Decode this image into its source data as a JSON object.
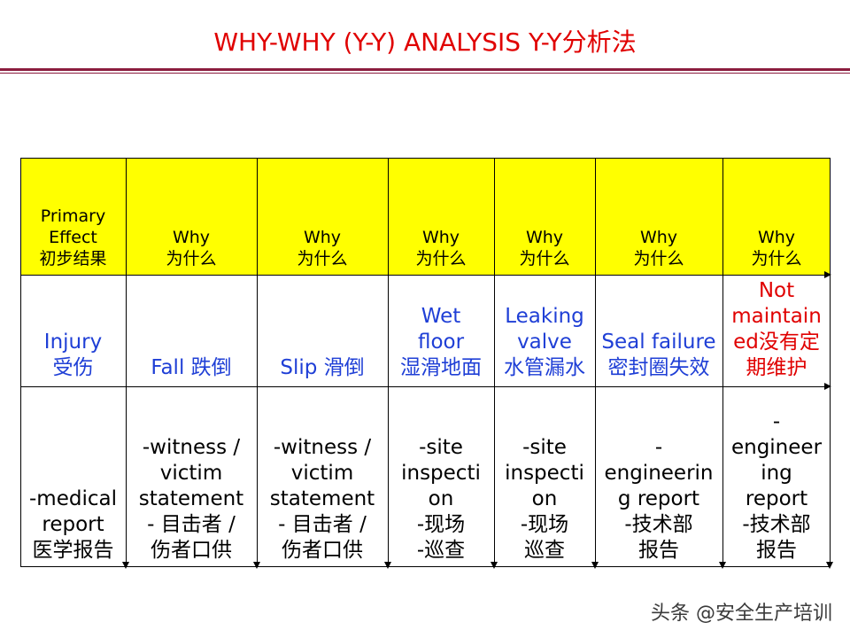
{
  "title": "WHY-WHY (Y-Y) ANALYSIS Y-Y分析法",
  "watermark": "头条 @安全生产培训",
  "columns": [
    {
      "head": [
        "Primary",
        "Effect",
        "初步结果"
      ],
      "effect": [
        "Injury",
        "受伤"
      ],
      "evidence": [
        "-medical",
        "report",
        "医学报告"
      ]
    },
    {
      "head": [
        "Why",
        "为什么"
      ],
      "effect": [
        "Fall 跌倒"
      ],
      "evidence": [
        "-witness /",
        "victim",
        "statement",
        "- 目击者 /",
        "伤者口供"
      ]
    },
    {
      "head": [
        "Why",
        "为什么"
      ],
      "effect": [
        "Slip 滑倒"
      ],
      "evidence": [
        "-witness /",
        "victim",
        "statement",
        "- 目击者 /",
        "伤者口供"
      ]
    },
    {
      "head": [
        "Why",
        "为什么"
      ],
      "effect": [
        "Wet",
        "floor",
        "湿滑地面"
      ],
      "evidence": [
        "-site",
        "inspecti",
        "on",
        "-现场",
        "-巡查"
      ]
    },
    {
      "head": [
        "Why",
        "为什么"
      ],
      "effect": [
        "Leaking",
        "valve",
        "水管漏水"
      ],
      "evidence": [
        "-site",
        "inspecti",
        "on",
        "-现场",
        "巡查"
      ]
    },
    {
      "head": [
        "Why",
        "为什么"
      ],
      "effect": [
        "Seal failure",
        "密封圈失效"
      ],
      "evidence": [
        "-",
        "engineerin",
        "g report",
        "-技术部",
        "报告"
      ]
    },
    {
      "head": [
        "Why",
        "为什么"
      ],
      "effect": [
        "Not",
        "maintain",
        "ed没有定",
        "期维护"
      ],
      "evidence": [
        "-",
        "engineer",
        "ing",
        "report",
        "-技术部",
        "报告"
      ],
      "effect_color": "#e00000"
    }
  ],
  "colors": {
    "title": "#e00000",
    "header_bg": "#ffff00",
    "effect_text": "#1f3fd6",
    "rule": "#8b1c3e"
  }
}
